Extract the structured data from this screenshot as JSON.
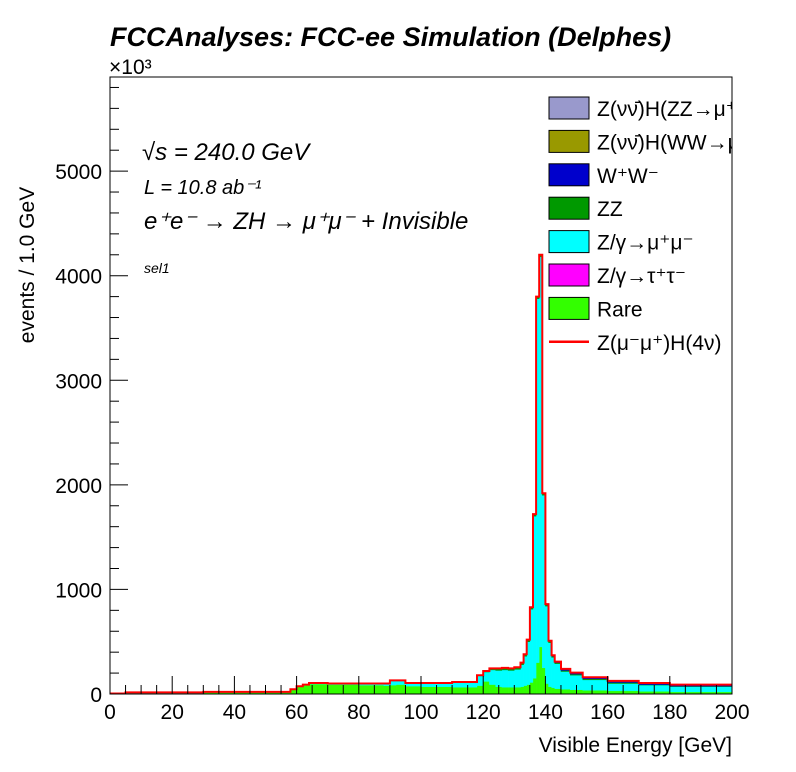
{
  "chart_data": {
    "type": "area",
    "title": "FCCAnalyses: FCC-ee Simulation (Delphes)",
    "xlabel": "Visible Energy [GeV]",
    "ylabel": "events / 1.0 GeV",
    "y_multiplier_label": "×10³",
    "xlim": [
      0,
      200
    ],
    "ylim": [
      0,
      5900
    ],
    "x_ticks": [
      "0",
      "20",
      "40",
      "60",
      "80",
      "100",
      "120",
      "140",
      "160",
      "180",
      "200"
    ],
    "y_ticks": [
      "0",
      "1000",
      "2000",
      "3000",
      "4000",
      "5000"
    ],
    "grid": false,
    "legend_position": "top-right",
    "annotations": {
      "energy": "√s = 240.0 GeV",
      "lumi": "L = 10.8 ab⁻¹",
      "process": "e⁺e⁻ → ZH → μ⁺μ⁻ + Invisible",
      "selection": "sel1"
    },
    "bin_edges": [
      0,
      5,
      30,
      58,
      60,
      62,
      64,
      66,
      70,
      80,
      88,
      90,
      92,
      95,
      100,
      110,
      118,
      120,
      122,
      124,
      126,
      128,
      130,
      132,
      133,
      134,
      135,
      136,
      137,
      138,
      139,
      140,
      141,
      142,
      143,
      145,
      148,
      152,
      160,
      170,
      180,
      200
    ],
    "series": [
      {
        "name": "Rare",
        "color": "#33ff00",
        "values": [
          5,
          8,
          15,
          40,
          70,
          85,
          95,
          95,
          90,
          85,
          80,
          85,
          90,
          75,
          70,
          65,
          80,
          120,
          90,
          70,
          65,
          65,
          65,
          70,
          80,
          90,
          110,
          150,
          300,
          450,
          250,
          100,
          70,
          60,
          50,
          45,
          40,
          35,
          30,
          25,
          20
        ]
      },
      {
        "name": "Z/γ→τ⁺τ⁻",
        "color": "#ff00ff",
        "values": [
          0,
          0,
          0,
          0,
          0,
          0,
          0,
          0,
          0,
          0,
          0,
          0,
          0,
          0,
          0,
          0,
          0,
          0,
          0,
          0,
          0,
          0,
          0,
          0,
          0,
          0,
          0,
          0,
          0,
          0,
          0,
          0,
          0,
          0,
          0,
          0,
          0,
          0,
          0,
          0,
          0
        ]
      },
      {
        "name": "Z/γ→μ⁺μ⁻",
        "color": "#00ffff",
        "values": [
          5,
          5,
          5,
          5,
          5,
          5,
          10,
          10,
          10,
          15,
          20,
          45,
          40,
          30,
          35,
          45,
          95,
          90,
          140,
          155,
          165,
          160,
          170,
          210,
          280,
          410,
          700,
          1550,
          3480,
          3730,
          1650,
          740,
          420,
          290,
          240,
          170,
          140,
          100,
          70,
          60,
          50
        ]
      },
      {
        "name": "ZZ",
        "color": "#009900",
        "values": [
          0,
          0,
          0,
          0,
          0,
          0,
          0,
          0,
          0,
          0,
          0,
          0,
          0,
          0,
          0,
          5,
          5,
          10,
          15,
          20,
          20,
          20,
          20,
          20,
          20,
          20,
          20,
          20,
          20,
          20,
          20,
          15,
          15,
          10,
          10,
          10,
          10,
          10,
          10,
          5,
          5
        ]
      },
      {
        "name": "W⁺W⁻",
        "color": "#0000cc",
        "values": [
          0,
          0,
          0,
          0,
          0,
          0,
          0,
          0,
          0,
          0,
          0,
          0,
          0,
          0,
          0,
          0,
          0,
          0,
          0,
          0,
          0,
          0,
          0,
          0,
          0,
          0,
          0,
          0,
          0,
          0,
          0,
          5,
          5,
          10,
          10,
          15,
          15,
          15,
          15,
          15,
          15
        ]
      },
      {
        "name": "Z(νν̄)H(WW→μ⁺νμ⁻ν̄)",
        "color": "#999900",
        "values": [
          0,
          0,
          0,
          0,
          0,
          0,
          0,
          0,
          0,
          0,
          0,
          0,
          0,
          0,
          0,
          0,
          0,
          0,
          0,
          0,
          0,
          0,
          0,
          0,
          0,
          0,
          0,
          0,
          0,
          0,
          0,
          0,
          0,
          0,
          0,
          0,
          0,
          0,
          0,
          0,
          0
        ]
      },
      {
        "name": "Z(νν̄)H(ZZ→μ⁺μ⁻ν⁺ν⁻)",
        "color": "#9999cc",
        "values": [
          0,
          0,
          0,
          0,
          0,
          0,
          0,
          0,
          0,
          0,
          0,
          0,
          0,
          0,
          0,
          0,
          0,
          0,
          0,
          0,
          0,
          0,
          0,
          0,
          0,
          0,
          0,
          0,
          0,
          0,
          0,
          0,
          0,
          0,
          0,
          0,
          0,
          0,
          0,
          0,
          0
        ]
      }
    ],
    "overlay": {
      "name": "Z(μ⁻μ⁺)H(4ν)",
      "color": "#ff0000",
      "type": "line",
      "values": [
        5,
        15,
        20,
        45,
        75,
        90,
        105,
        105,
        100,
        100,
        100,
        130,
        130,
        105,
        105,
        115,
        180,
        220,
        245,
        245,
        250,
        245,
        255,
        300,
        380,
        520,
        830,
        1720,
        3800,
        4200,
        1920,
        860,
        510,
        370,
        310,
        240,
        205,
        160,
        125,
        105,
        90
      ]
    },
    "legend_order": [
      "Z(νν̄)H(ZZ→μ⁺μ⁻ν⁺ν⁻)",
      "Z(νν̄)H(WW→μ⁺νμ⁻ν̄)",
      "W⁺W⁻",
      "ZZ",
      "Z/γ→μ⁺μ⁻",
      "Z/γ→τ⁺τ⁻",
      "Rare",
      "Z(μ⁻μ⁺)H(4ν)"
    ]
  }
}
